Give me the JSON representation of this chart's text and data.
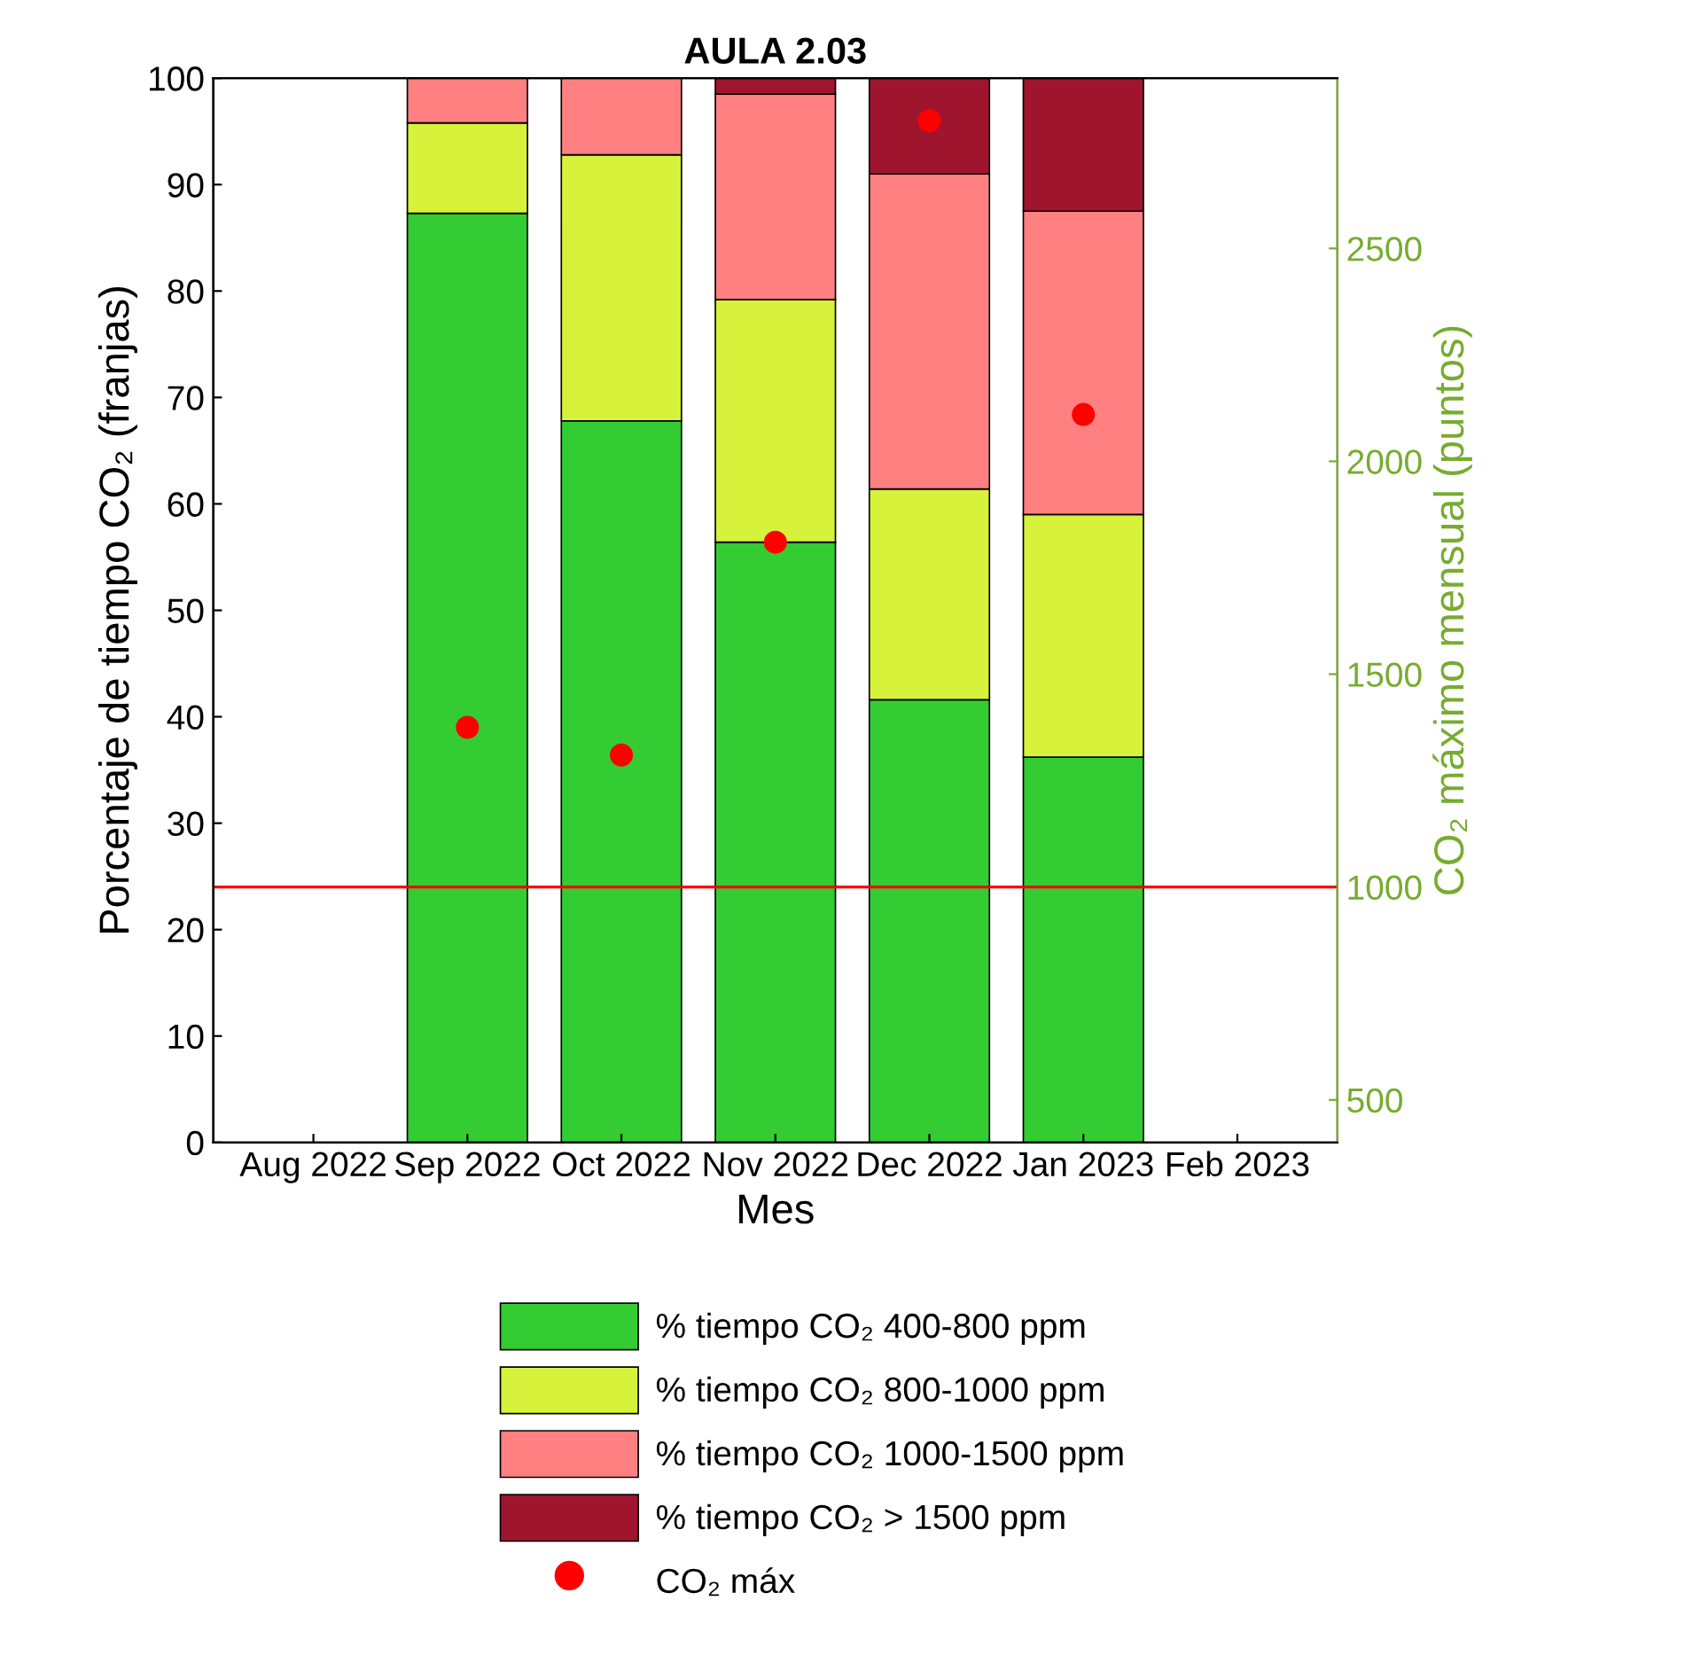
{
  "chart_data": {
    "type": "bar",
    "title": "AULA 2.03",
    "xlabel": "Mes",
    "ylabel": "Porcentaje de tiempo CO₂ (franjas)",
    "y2label": "CO₂ máximo mensual (puntos)",
    "categories": [
      "Aug 2022",
      "Sep 2022",
      "Oct 2022",
      "Nov 2022",
      "Dec 2022",
      "Jan 2023",
      "Feb 2023"
    ],
    "stacked": true,
    "series": [
      {
        "name": "% tiempo CO₂ 400-800 ppm",
        "color": "#33cc33",
        "values": [
          null,
          87.3,
          67.8,
          56.4,
          41.6,
          36.2,
          null
        ]
      },
      {
        "name": "% tiempo CO₂ 800-1000 ppm",
        "color": "#d6f23a",
        "values": [
          null,
          8.5,
          25.0,
          22.8,
          19.8,
          22.8,
          null
        ]
      },
      {
        "name": "% tiempo CO₂ 1000-1500 ppm",
        "color": "#ff8080",
        "values": [
          null,
          4.2,
          7.2,
          19.3,
          29.6,
          28.5,
          null
        ]
      },
      {
        "name": "% tiempo CO₂ > 1500 ppm",
        "color": "#a0152e",
        "values": [
          null,
          0,
          0,
          1.5,
          9.0,
          12.5,
          null
        ]
      },
      {
        "name": "CO₂ máx",
        "type": "scatter",
        "axis": "y2",
        "color": "#ff0000",
        "marker": "circle",
        "values": [
          null,
          1375,
          1310,
          1810,
          2800,
          2110,
          null
        ]
      }
    ],
    "ylim": [
      0,
      100
    ],
    "yticks": [
      0,
      10,
      20,
      30,
      40,
      50,
      60,
      70,
      80,
      90,
      100
    ],
    "y2lim": [
      400,
      2900
    ],
    "y2ticks": [
      500,
      1000,
      1500,
      2000,
      2500
    ],
    "ref_lines": [
      {
        "axis": "y2",
        "value": 1000,
        "color": "#ff0000"
      }
    ],
    "legend": "bottom",
    "grid": false
  }
}
